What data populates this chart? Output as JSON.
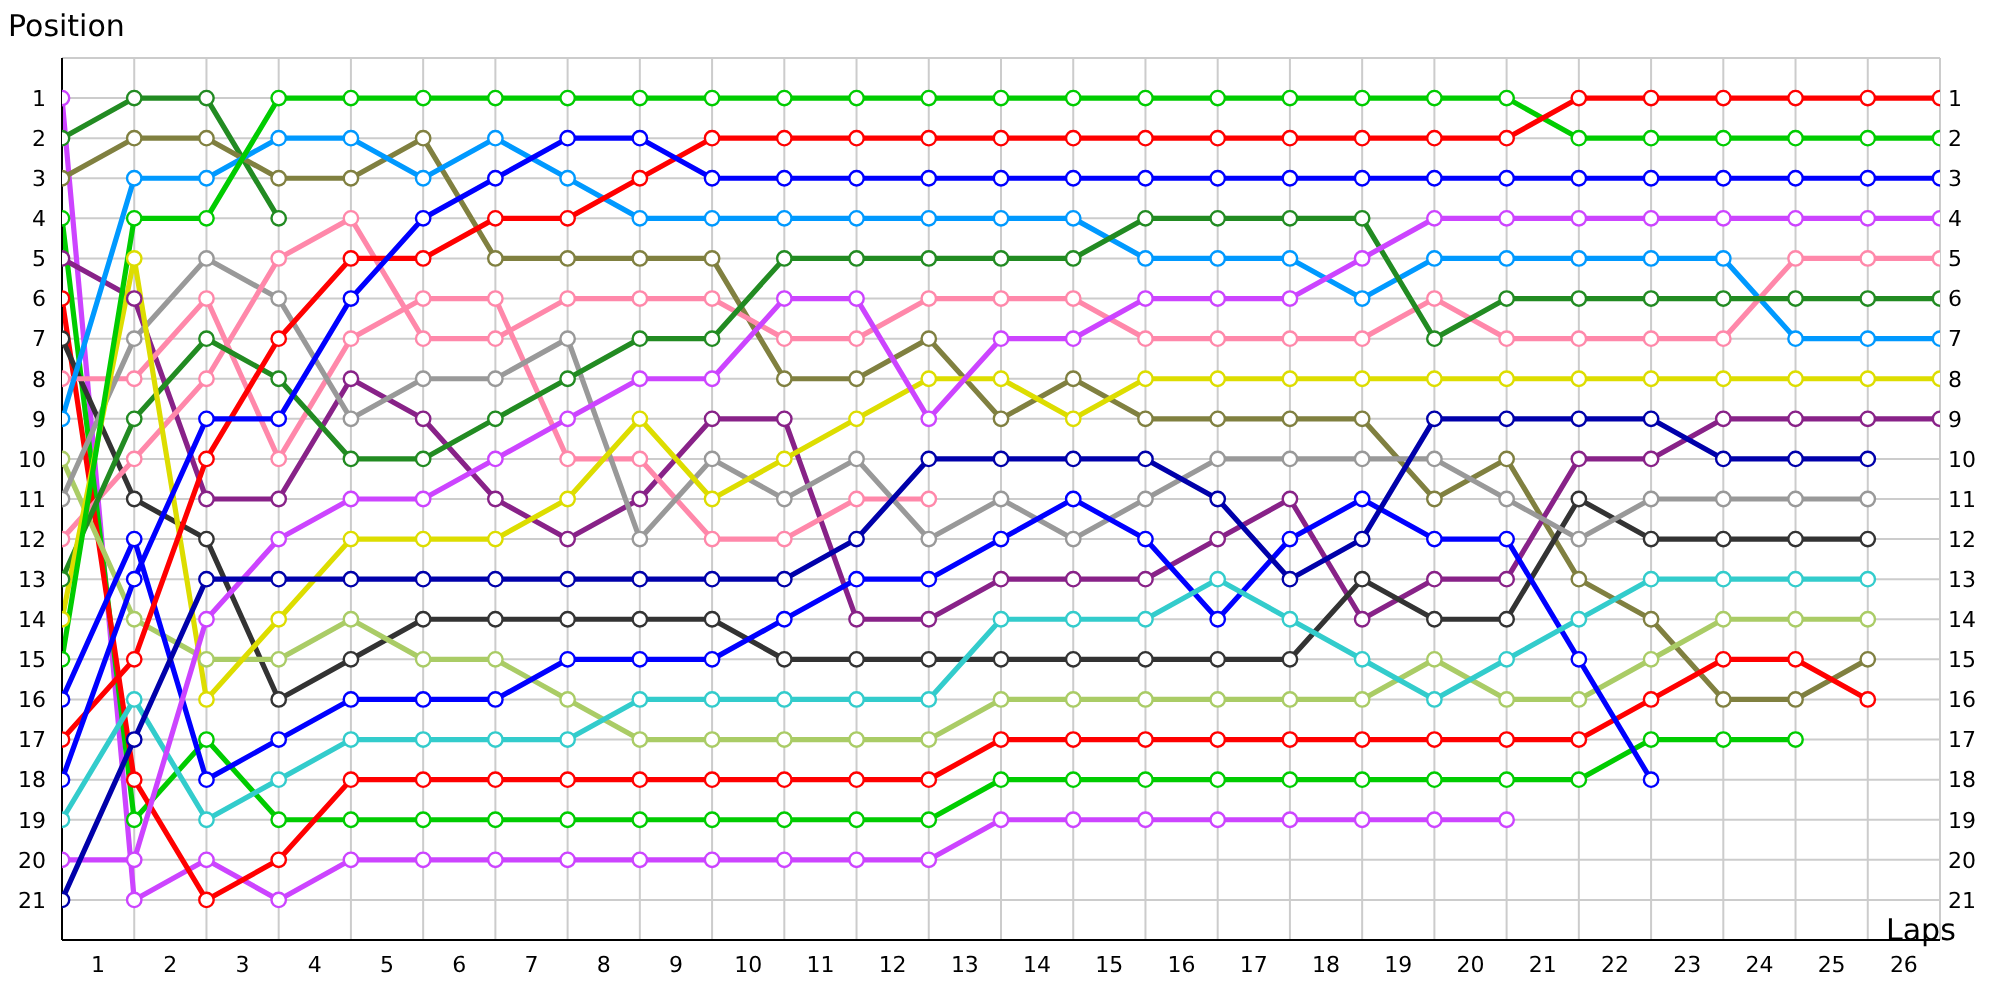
{
  "chart_data": {
    "type": "line",
    "xlabel": "Laps",
    "ylabel": "Position",
    "marker": "circle",
    "grid": true,
    "legend": false,
    "x": [
      0,
      1,
      2,
      3,
      4,
      5,
      6,
      7,
      8,
      9,
      10,
      11,
      12,
      13,
      14,
      15,
      16,
      17,
      18,
      19,
      20,
      21,
      22,
      23,
      24,
      25,
      26
    ],
    "xlim": [
      0,
      26
    ],
    "xticks": [
      {
        "value": 0,
        "label": null
      },
      {
        "value": 0.5,
        "label": "1"
      },
      {
        "value": 1,
        "label": null
      },
      {
        "value": 1.5,
        "label": "2"
      },
      {
        "value": 2,
        "label": null
      },
      {
        "value": 2.5,
        "label": "3"
      },
      {
        "value": 3,
        "label": null
      },
      {
        "value": 3.5,
        "label": "4"
      },
      {
        "value": 4,
        "label": null
      },
      {
        "value": 4.5,
        "label": "5"
      },
      {
        "value": 5,
        "label": null
      },
      {
        "value": 5.5,
        "label": "6"
      },
      {
        "value": 6,
        "label": null
      },
      {
        "value": 6.5,
        "label": "7"
      },
      {
        "value": 7,
        "label": null
      },
      {
        "value": 7.5,
        "label": "8"
      },
      {
        "value": 8,
        "label": null
      },
      {
        "value": 8.5,
        "label": "9"
      },
      {
        "value": 9,
        "label": null
      },
      {
        "value": 9.5,
        "label": "10"
      },
      {
        "value": 10,
        "label": null
      },
      {
        "value": 10.5,
        "label": "11"
      },
      {
        "value": 11,
        "label": null
      },
      {
        "value": 11.5,
        "label": "12"
      },
      {
        "value": 12,
        "label": null
      },
      {
        "value": 12.5,
        "label": "13"
      },
      {
        "value": 13,
        "label": null
      },
      {
        "value": 13.5,
        "label": "14"
      },
      {
        "value": 14,
        "label": null
      },
      {
        "value": 14.5,
        "label": "15"
      },
      {
        "value": 15,
        "label": null
      },
      {
        "value": 15.5,
        "label": "16"
      },
      {
        "value": 16,
        "label": null
      },
      {
        "value": 16.5,
        "label": "17"
      },
      {
        "value": 17,
        "label": null
      },
      {
        "value": 17.5,
        "label": "18"
      },
      {
        "value": 18,
        "label": null
      },
      {
        "value": 18.5,
        "label": "19"
      },
      {
        "value": 19,
        "label": null
      },
      {
        "value": 19.5,
        "label": "20"
      },
      {
        "value": 20,
        "label": null
      },
      {
        "value": 20.5,
        "label": "21"
      },
      {
        "value": 21,
        "label": null
      },
      {
        "value": 21.5,
        "label": "22"
      },
      {
        "value": 22,
        "label": null
      },
      {
        "value": 22.5,
        "label": "23"
      },
      {
        "value": 23,
        "label": null
      },
      {
        "value": 23.5,
        "label": "24"
      },
      {
        "value": 24,
        "label": null
      },
      {
        "value": 24.5,
        "label": "25"
      },
      {
        "value": 25,
        "label": null
      },
      {
        "value": 25.5,
        "label": "26"
      },
      {
        "value": 26,
        "label": null
      }
    ],
    "ylim": [
      22,
      0
    ],
    "yticks": [
      1,
      2,
      3,
      4,
      5,
      6,
      7,
      8,
      9,
      10,
      11,
      12,
      13,
      14,
      15,
      16,
      17,
      18,
      19,
      20,
      21
    ],
    "y2lim": [
      22,
      0
    ],
    "y2ticks": [
      1,
      2,
      3,
      4,
      5,
      6,
      7,
      8,
      9,
      10,
      11,
      12,
      13,
      14,
      15,
      16,
      17,
      18,
      19,
      20,
      21
    ],
    "series": [
      {
        "color": "#cc44ff",
        "values": [
          1,
          21,
          20,
          21,
          20,
          20,
          20,
          20,
          20,
          20,
          20,
          20,
          20,
          19,
          19,
          19,
          19,
          19,
          19,
          19,
          19,
          null,
          null,
          null,
          null,
          null,
          null
        ]
      },
      {
        "color": "#228b22",
        "values": [
          2,
          1,
          1,
          4,
          null,
          null,
          null,
          null,
          null,
          null,
          null,
          null,
          null,
          null,
          null,
          null,
          null,
          null,
          null,
          null,
          null,
          null,
          null,
          null,
          null,
          null,
          null
        ]
      },
      {
        "color": "#808040",
        "values": [
          3,
          2,
          2,
          3,
          3,
          2,
          5,
          5,
          5,
          5,
          8,
          8,
          7,
          9,
          8,
          9,
          9,
          9,
          9,
          11,
          10,
          13,
          14,
          16,
          16,
          15,
          null
        ]
      },
      {
        "color": "#00cc00",
        "values": [
          4,
          19,
          17,
          19,
          19,
          19,
          19,
          19,
          19,
          19,
          19,
          19,
          19,
          18,
          18,
          18,
          18,
          18,
          18,
          18,
          18,
          18,
          17,
          17,
          17,
          null,
          null
        ]
      },
      {
        "color": "#882288",
        "values": [
          5,
          6,
          11,
          11,
          8,
          9,
          11,
          12,
          11,
          9,
          9,
          14,
          14,
          13,
          13,
          13,
          12,
          11,
          14,
          13,
          13,
          10,
          10,
          9,
          9,
          9,
          9
        ]
      },
      {
        "color": "#ff0000",
        "values": [
          6,
          18,
          21,
          20,
          18,
          18,
          18,
          18,
          18,
          18,
          18,
          18,
          18,
          17,
          17,
          17,
          17,
          17,
          17,
          17,
          17,
          17,
          16,
          15,
          15,
          16,
          null
        ]
      },
      {
        "color": "#333333",
        "values": [
          7,
          11,
          12,
          16,
          15,
          14,
          14,
          14,
          14,
          14,
          15,
          15,
          15,
          15,
          15,
          15,
          15,
          15,
          13,
          14,
          14,
          11,
          12,
          12,
          12,
          12,
          null
        ]
      },
      {
        "color": "#ff88aa",
        "values": [
          8,
          8,
          6,
          10,
          7,
          6,
          6,
          10,
          10,
          12,
          12,
          11,
          11,
          null,
          null,
          null,
          null,
          null,
          null,
          null,
          null,
          null,
          null,
          null,
          null,
          null,
          null
        ]
      },
      {
        "color": "#0099ff",
        "values": [
          9,
          3,
          3,
          2,
          2,
          3,
          2,
          3,
          4,
          4,
          4,
          4,
          4,
          4,
          4,
          5,
          5,
          5,
          6,
          5,
          5,
          5,
          5,
          5,
          7,
          7,
          7
        ]
      },
      {
        "color": "#aacc66",
        "values": [
          10,
          14,
          15,
          15,
          14,
          15,
          15,
          16,
          17,
          17,
          17,
          17,
          17,
          16,
          16,
          16,
          16,
          16,
          16,
          15,
          16,
          16,
          15,
          14,
          14,
          14,
          null
        ]
      },
      {
        "color": "#999999",
        "values": [
          11,
          7,
          5,
          6,
          9,
          8,
          8,
          7,
          12,
          10,
          11,
          10,
          12,
          11,
          12,
          11,
          10,
          10,
          10,
          10,
          11,
          12,
          11,
          11,
          11,
          11,
          null
        ]
      },
      {
        "color": "#ff88aa",
        "values": [
          12,
          10,
          8,
          5,
          4,
          7,
          7,
          6,
          6,
          6,
          7,
          7,
          6,
          6,
          6,
          7,
          7,
          7,
          7,
          6,
          7,
          7,
          7,
          7,
          5,
          5,
          5
        ]
      },
      {
        "color": "#228b22",
        "values": [
          13,
          9,
          7,
          8,
          10,
          10,
          9,
          8,
          7,
          7,
          5,
          5,
          5,
          5,
          5,
          4,
          4,
          4,
          4,
          7,
          6,
          6,
          6,
          6,
          6,
          6,
          6
        ]
      },
      {
        "color": "#dddd00",
        "values": [
          14,
          5,
          16,
          14,
          12,
          12,
          12,
          11,
          9,
          11,
          10,
          9,
          8,
          8,
          9,
          8,
          8,
          8,
          8,
          8,
          8,
          8,
          8,
          8,
          8,
          8,
          8
        ]
      },
      {
        "color": "#00cc00",
        "values": [
          15,
          4,
          4,
          1,
          1,
          1,
          1,
          1,
          1,
          1,
          1,
          1,
          1,
          1,
          1,
          1,
          1,
          1,
          1,
          1,
          1,
          2,
          2,
          2,
          2,
          2,
          2
        ]
      },
      {
        "color": "#0000ff",
        "values": [
          16,
          12,
          18,
          17,
          16,
          16,
          16,
          15,
          15,
          15,
          14,
          13,
          13,
          12,
          11,
          12,
          14,
          12,
          11,
          12,
          12,
          15,
          18,
          null,
          null,
          null,
          null
        ]
      },
      {
        "color": "#ff0000",
        "values": [
          17,
          15,
          10,
          7,
          5,
          5,
          4,
          4,
          3,
          2,
          2,
          2,
          2,
          2,
          2,
          2,
          2,
          2,
          2,
          2,
          2,
          1,
          1,
          1,
          1,
          1,
          1
        ]
      },
      {
        "color": "#0000ff",
        "values": [
          18,
          13,
          9,
          9,
          6,
          4,
          3,
          2,
          2,
          3,
          3,
          3,
          3,
          3,
          3,
          3,
          3,
          3,
          3,
          3,
          3,
          3,
          3,
          3,
          3,
          3,
          3
        ]
      },
      {
        "color": "#33cccc",
        "values": [
          19,
          16,
          19,
          18,
          17,
          17,
          17,
          17,
          16,
          16,
          16,
          16,
          16,
          14,
          14,
          14,
          13,
          14,
          15,
          16,
          15,
          14,
          13,
          13,
          13,
          13,
          null
        ]
      },
      {
        "color": "#cc44ff",
        "values": [
          20,
          20,
          14,
          12,
          11,
          11,
          10,
          9,
          8,
          8,
          6,
          6,
          9,
          7,
          7,
          6,
          6,
          6,
          5,
          4,
          4,
          4,
          4,
          4,
          4,
          4,
          4
        ]
      },
      {
        "color": "#0000aa",
        "values": [
          21,
          17,
          13,
          13,
          13,
          13,
          13,
          13,
          13,
          13,
          13,
          12,
          10,
          10,
          10,
          10,
          11,
          13,
          12,
          9,
          9,
          9,
          9,
          10,
          10,
          10,
          null
        ]
      }
    ]
  }
}
